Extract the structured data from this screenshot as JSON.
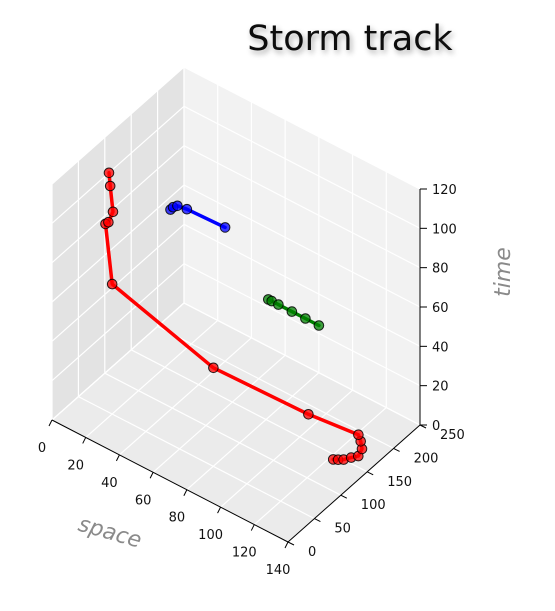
{
  "chart_data": {
    "type": "line",
    "projection": "3d",
    "title": "Storm track",
    "xlabel": "space",
    "ylabel": "",
    "zlabel": "time",
    "xlim": [
      0,
      140
    ],
    "ylim": [
      0,
      250
    ],
    "zlim": [
      0,
      120
    ],
    "xticks": [
      "0",
      "20",
      "40",
      "60",
      "80",
      "100",
      "120",
      "140"
    ],
    "yticks": [
      "0",
      "50",
      "100",
      "150",
      "200",
      "250"
    ],
    "zticks": [
      "0",
      "20",
      "40",
      "60",
      "80",
      "100",
      "120"
    ],
    "grid": true,
    "series": [
      {
        "color": "#ff0000",
        "points": [
          {
            "x": 122,
            "y": 143,
            "z": 0
          },
          {
            "x": 124,
            "y": 146,
            "z": 0
          },
          {
            "x": 126,
            "y": 150,
            "z": 0
          },
          {
            "x": 128,
            "y": 158,
            "z": 0
          },
          {
            "x": 130,
            "y": 165,
            "z": 0
          },
          {
            "x": 130,
            "y": 172,
            "z": 2
          },
          {
            "x": 128,
            "y": 176,
            "z": 4
          },
          {
            "x": 126,
            "y": 178,
            "z": 6
          },
          {
            "x": 102,
            "y": 160,
            "z": 10
          },
          {
            "x": 55,
            "y": 130,
            "z": 20
          },
          {
            "x": 5,
            "y": 98,
            "z": 48
          },
          {
            "x": 2,
            "y": 95,
            "z": 78
          },
          {
            "x": 4,
            "y": 94,
            "z": 80
          },
          {
            "x": 8,
            "y": 90,
            "z": 88
          },
          {
            "x": 6,
            "y": 91,
            "z": 100
          },
          {
            "x": 5,
            "y": 92,
            "z": 106
          }
        ]
      },
      {
        "color": "#0000ff",
        "points": [
          {
            "x": 2,
            "y": 218,
            "z": 56
          },
          {
            "x": 2,
            "y": 223,
            "z": 56
          },
          {
            "x": 3,
            "y": 228,
            "z": 56
          },
          {
            "x": 8,
            "y": 230,
            "z": 56
          },
          {
            "x": 30,
            "y": 232,
            "z": 56
          }
        ]
      },
      {
        "color": "#008000",
        "points": [
          {
            "x": 50,
            "y": 250,
            "z": 24
          },
          {
            "x": 52,
            "y": 250,
            "z": 24
          },
          {
            "x": 56,
            "y": 250,
            "z": 24
          },
          {
            "x": 64,
            "y": 250,
            "z": 24
          },
          {
            "x": 72,
            "y": 250,
            "z": 24
          },
          {
            "x": 80,
            "y": 250,
            "z": 24
          }
        ]
      }
    ]
  }
}
